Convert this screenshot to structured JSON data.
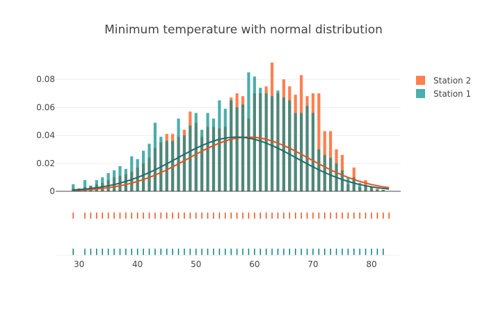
{
  "chart_data": {
    "type": "bar",
    "title": "Minimum temperature with normal distribution",
    "xlabel": "",
    "ylabel": "",
    "xlim": [
      26,
      85
    ],
    "ylim": [
      0,
      0.09
    ],
    "yticks": [
      0,
      0.02,
      0.04,
      0.06,
      0.08
    ],
    "ytick_labels": [
      "0",
      "0.02",
      "0.04",
      "0.06",
      "0.08"
    ],
    "xticks": [
      30,
      40,
      50,
      60,
      70,
      80
    ],
    "xtick_labels": [
      "30",
      "40",
      "50",
      "60",
      "70",
      "80"
    ],
    "grid": true,
    "legend_position": "top-right",
    "x": [
      29,
      30,
      31,
      32,
      33,
      34,
      35,
      36,
      37,
      38,
      39,
      40,
      41,
      42,
      43,
      44,
      45,
      46,
      47,
      48,
      49,
      50,
      51,
      52,
      53,
      54,
      55,
      56,
      57,
      58,
      59,
      60,
      61,
      62,
      63,
      64,
      65,
      66,
      67,
      68,
      69,
      70,
      71,
      72,
      73,
      74,
      75,
      76,
      77,
      78,
      79,
      80,
      81,
      82
    ],
    "series": [
      {
        "name": "Station 2",
        "color": "#ff7f50",
        "values": [
          0.002,
          0.002,
          0.003,
          0.004,
          0.005,
          0.006,
          0.008,
          0.01,
          0.011,
          0.012,
          0.014,
          0.017,
          0.02,
          0.024,
          0.031,
          0.035,
          0.041,
          0.041,
          0.039,
          0.044,
          0.057,
          0.049,
          0.039,
          0.046,
          0.046,
          0.045,
          0.046,
          0.067,
          0.07,
          0.068,
          0.052,
          0.07,
          0.07,
          0.075,
          0.092,
          0.07,
          0.08,
          0.075,
          0.069,
          0.083,
          0.068,
          0.07,
          0.07,
          0.043,
          0.043,
          0.03,
          0.026,
          0.005,
          0.017,
          0.003,
          0.008,
          0.003,
          0.002,
          0.001
        ]
      },
      {
        "name": "Station 1",
        "color": "#008b8b",
        "values": [
          0.005,
          0.002,
          0.008,
          0.004,
          0.008,
          0.01,
          0.013,
          0.015,
          0.018,
          0.016,
          0.025,
          0.023,
          0.029,
          0.034,
          0.049,
          0.039,
          0.036,
          0.036,
          0.052,
          0.04,
          0.047,
          0.056,
          0.044,
          0.056,
          0.052,
          0.065,
          0.059,
          0.065,
          0.06,
          0.062,
          0.085,
          0.082,
          0.074,
          0.07,
          0.068,
          0.072,
          0.067,
          0.065,
          0.056,
          0.056,
          0.061,
          0.056,
          0.03,
          0.026,
          0.024,
          0.02,
          0.015,
          0.01,
          0.01,
          0.006,
          0.004,
          0.003,
          0.001,
          0.001
        ]
      }
    ],
    "curves": [
      {
        "name": "Station 2",
        "color": "#e8501a",
        "mean": 59,
        "sd": 10.3
      },
      {
        "name": "Station 1",
        "color": "#1f6b6b",
        "mean": 57,
        "sd": 10.3
      }
    ],
    "rugs": [
      {
        "name": "Station 2",
        "color": "#e8501a",
        "x": [
          29,
          31,
          32,
          33,
          34,
          35,
          36,
          37,
          38,
          39,
          40,
          41,
          42,
          43,
          44,
          45,
          46,
          47,
          48,
          49,
          50,
          51,
          52,
          53,
          54,
          55,
          56,
          57,
          58,
          59,
          60,
          61,
          62,
          63,
          64,
          65,
          66,
          67,
          68,
          69,
          70,
          71,
          72,
          73,
          74,
          75,
          76,
          77,
          78,
          79,
          80,
          81,
          82,
          83
        ]
      },
      {
        "name": "Station 1",
        "color": "#008080",
        "x": [
          29,
          31,
          32,
          33,
          34,
          35,
          36,
          37,
          38,
          39,
          40,
          41,
          42,
          43,
          44,
          45,
          46,
          47,
          48,
          49,
          50,
          51,
          52,
          53,
          54,
          55,
          56,
          57,
          58,
          59,
          60,
          61,
          62,
          63,
          64,
          65,
          66,
          67,
          68,
          69,
          70,
          71,
          72,
          73,
          74,
          75,
          76,
          77,
          78,
          79,
          80,
          81,
          82
        ]
      }
    ]
  }
}
